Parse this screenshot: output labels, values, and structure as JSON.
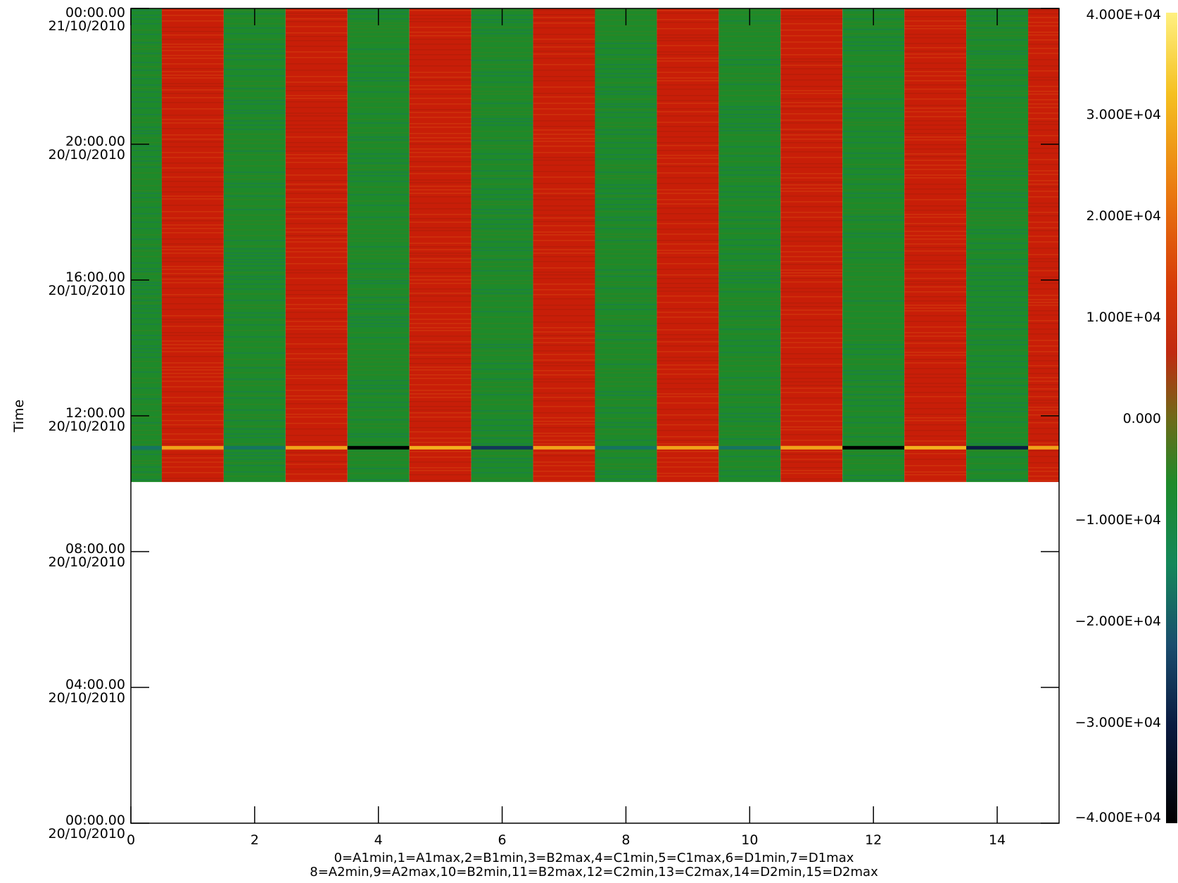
{
  "chart_data": {
    "type": "heatmap",
    "title": "",
    "xlabel": "",
    "ylabel": "Time",
    "xlim": [
      0,
      15
    ],
    "x_ticks": [
      "0",
      "2",
      "4",
      "6",
      "8",
      "10",
      "12",
      "14"
    ],
    "x_tick_values": [
      0,
      2,
      4,
      6,
      8,
      10,
      12,
      14
    ],
    "caption_lines": [
      "0=A1min,1=A1max,2=B1min,3=B2max,4=C1min,5=C1max,6=D1min,7=D1max",
      "8=A2min,9=A2max,10=B2min,11=B2max,12=C2min,13=C2max,14=D2min,15=D2max"
    ],
    "y_ticks": [
      {
        "hours": 0,
        "time": "00:00.00",
        "date": "20/10/2010"
      },
      {
        "hours": 4,
        "time": "04:00.00",
        "date": "20/10/2010"
      },
      {
        "hours": 8,
        "time": "08:00.00",
        "date": "20/10/2010"
      },
      {
        "hours": 12,
        "time": "12:00.00",
        "date": "20/10/2010"
      },
      {
        "hours": 16,
        "time": "16:00.00",
        "date": "20/10/2010"
      },
      {
        "hours": 20,
        "time": "20:00.00",
        "date": "20/10/2010"
      },
      {
        "hours": 24,
        "time": "00:00.00",
        "date": "21/10/2010"
      }
    ],
    "ylim_hours": [
      0,
      24
    ],
    "data_start_hours": 10.05,
    "data_end_hours": 24,
    "channels": [
      0,
      1,
      2,
      3,
      4,
      5,
      6,
      7,
      8,
      9,
      10,
      11,
      12,
      13,
      14,
      15
    ],
    "channel_values": [
      -10000,
      10000,
      -10000,
      10000,
      -10000,
      10000,
      -10000,
      10000,
      -10000,
      10000,
      -10000,
      10000,
      -10000,
      10000,
      -10000,
      10000
    ],
    "spike_hours": 11.05,
    "spike_values": [
      -17000,
      28000,
      -17000,
      28000,
      -40000,
      30000,
      -26000,
      28000,
      -17000,
      28000,
      -17000,
      28000,
      -40000,
      30000,
      -30000,
      28000
    ],
    "colorbar": {
      "min": -40000,
      "max": 40000,
      "ticks": [
        {
          "value": 40000,
          "label": "4.000E+04"
        },
        {
          "value": 30000,
          "label": "3.000E+04"
        },
        {
          "value": 20000,
          "label": "2.000E+04"
        },
        {
          "value": 10000,
          "label": "1.000E+04"
        },
        {
          "value": 0,
          "label": "0.000"
        },
        {
          "value": -10000,
          "label": "−1.000E+04"
        },
        {
          "value": -20000,
          "label": "−2.000E+04"
        },
        {
          "value": -30000,
          "label": "−3.000E+04"
        },
        {
          "value": -40000,
          "label": "−4.000E+04"
        }
      ]
    },
    "colors": {
      "green": "#1e8a2a",
      "red": "#c81e08",
      "dark_blue": "#1a3d5c",
      "orange": "#f0a020",
      "black": "#000000"
    }
  }
}
